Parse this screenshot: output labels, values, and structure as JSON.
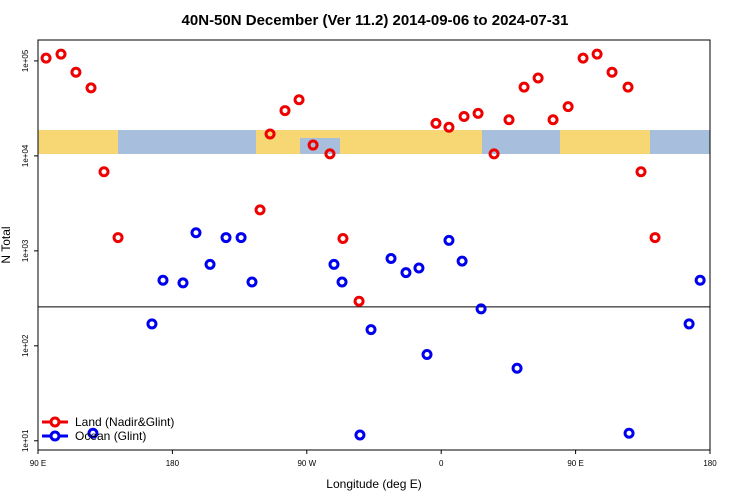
{
  "chart_data": {
    "type": "scatter",
    "title": "40N-50N December (Ver 11.2)   2014-09-06 to 2024-07-31",
    "x_label": "Longitude (deg E)",
    "y_label": "N Total",
    "xlim": [
      90,
      540
    ],
    "ylim": [
      8,
      166000
    ],
    "log_y": true,
    "xticks": [
      {
        "value": 90,
        "label": "90 E"
      },
      {
        "value": 180,
        "label": "180"
      },
      {
        "value": 270,
        "label": "90 W"
      },
      {
        "value": 360,
        "label": "0"
      },
      {
        "value": 450,
        "label": "90 E"
      },
      {
        "value": 540,
        "label": "180"
      }
    ],
    "yticks": [
      {
        "value": 10,
        "label": "1e+01"
      },
      {
        "value": 100,
        "label": "1e+02"
      },
      {
        "value": 1000,
        "label": "1e+03"
      },
      {
        "value": 10000,
        "label": "1e+04"
      },
      {
        "value": 100000,
        "label": "1e+05"
      }
    ],
    "reference_line": 257,
    "legend": "bottom-left",
    "series": [
      {
        "name": "Land (Nadir&Glint)",
        "color": "#ee0000",
        "x": [
          95.4,
          105.4,
          115.4,
          125.5,
          134.2,
          143.6,
          238.7,
          245.4,
          255.4,
          264.8,
          274.2,
          285.5,
          294.2,
          305,
          356.5,
          365.2,
          375.3,
          384.7,
          395.4,
          405.4,
          415.5,
          424.9,
          434.9,
          445,
          455,
          464.4,
          474.4,
          485.1,
          493.8,
          503.2
        ],
        "values": [
          107000,
          118000,
          76000,
          52000,
          6800,
          1380,
          2700,
          17000,
          30000,
          39000,
          13000,
          10500,
          1350,
          295,
          22000,
          20000,
          26000,
          28000,
          10500,
          24000,
          53000,
          66000,
          24000,
          33000,
          107000,
          118000,
          76000,
          53000,
          6800,
          1380
        ]
      },
      {
        "name": "Ocean (Glint)",
        "color": "#0000ee",
        "x": [
          126.8,
          166.3,
          173.7,
          187.1,
          195.8,
          205.2,
          215.9,
          226,
          233.3,
          288.2,
          293.6,
          305.6,
          313,
          326.4,
          336.4,
          345.1,
          350.5,
          365.2,
          374,
          386.7,
          410.8,
          485.8,
          526,
          533.4
        ],
        "values": [
          12,
          170,
          490,
          460,
          1550,
          720,
          1380,
          1380,
          470,
          720,
          470,
          11.5,
          148,
          830,
          590,
          660,
          81,
          1290,
          780,
          245,
          58,
          12,
          170,
          490
        ]
      }
    ]
  }
}
